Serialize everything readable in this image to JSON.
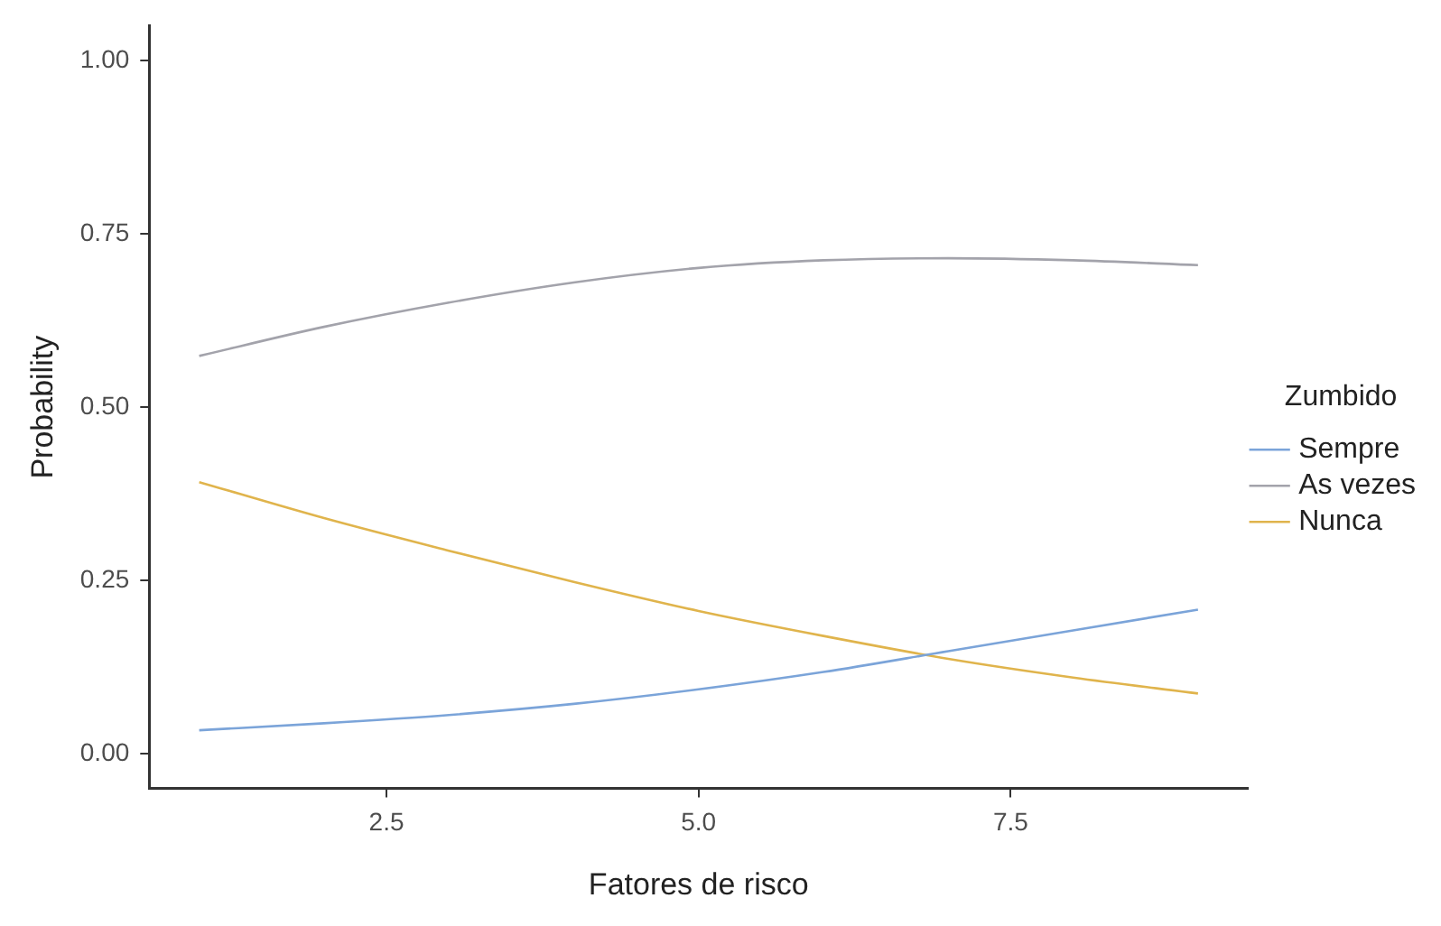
{
  "chart_data": {
    "type": "line",
    "xlabel": "Fatores de risco",
    "ylabel": "Probability",
    "legend_title": "Zumbido",
    "legend": "right",
    "grid": false,
    "marker": "none",
    "line_style": "solid",
    "x": [
      1,
      2,
      3,
      4,
      5,
      6,
      7,
      8,
      9
    ],
    "xlim": [
      0.6,
      9.4
    ],
    "xticks": [
      2.5,
      {
        "value": 5,
        "label": "5.0"
      },
      7.5
    ],
    "ylim": [
      -0.05,
      1.05
    ],
    "yticks": [
      {
        "value": 0,
        "label": "0.00"
      },
      {
        "value": 0.25,
        "label": "0.25"
      },
      {
        "value": 0.5,
        "label": "0.50"
      },
      {
        "value": 0.75,
        "label": "0.75"
      },
      {
        "value": 1,
        "label": "1.00"
      }
    ],
    "series": [
      {
        "name": "Sempre",
        "color": "#7ba4d9",
        "values": [
          0.034,
          0.044,
          0.056,
          0.072,
          0.093,
          0.118,
          0.148,
          0.178,
          0.208
        ]
      },
      {
        "name": "As vezes",
        "color": "#a3a3ab",
        "values": [
          0.574,
          0.616,
          0.651,
          0.68,
          0.701,
          0.712,
          0.715,
          0.712,
          0.705
        ]
      },
      {
        "name": "Nunca",
        "color": "#e0b44c",
        "values": [
          0.392,
          0.34,
          0.293,
          0.248,
          0.206,
          0.17,
          0.137,
          0.11,
          0.087
        ]
      }
    ]
  }
}
